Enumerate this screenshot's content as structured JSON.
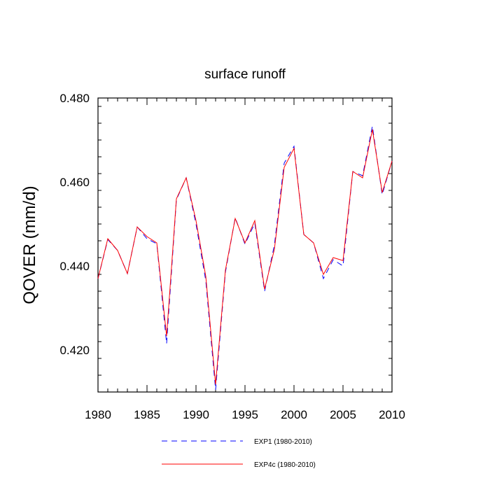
{
  "chart_data": {
    "type": "line",
    "title": "surface runoff",
    "xlabel": "",
    "ylabel": "QOVER  (mm/d)",
    "xlim": [
      1980,
      2010
    ],
    "ylim": [
      0.41,
      0.48
    ],
    "x_ticks": [
      1980,
      1985,
      1990,
      1995,
      2000,
      2005,
      2010
    ],
    "y_ticks": [
      0.42,
      0.44,
      0.46,
      0.48
    ],
    "y_tick_labels": [
      "0.420",
      "0.440",
      "0.460",
      "0.480"
    ],
    "x": [
      1980,
      1981,
      1982,
      1983,
      1984,
      1985,
      1986,
      1987,
      1988,
      1989,
      1990,
      1991,
      1992,
      1993,
      1994,
      1995,
      1996,
      1997,
      1998,
      1999,
      2000,
      2001,
      2002,
      2003,
      2004,
      2005,
      2006,
      2007,
      2008,
      2009,
      2010
    ],
    "series": [
      {
        "name": "EXP1 (1980-2010)",
        "color": "#0000ff",
        "dash": "dashed",
        "values": [
          0.437,
          0.4463,
          0.4437,
          0.4382,
          0.4493,
          0.4465,
          0.4453,
          0.4215,
          0.4558,
          0.461,
          0.45,
          0.4365,
          0.4105,
          0.4385,
          0.4515,
          0.4452,
          0.4502,
          0.434,
          0.445,
          0.4645,
          0.4685,
          0.4475,
          0.4455,
          0.437,
          0.4415,
          0.44,
          0.4625,
          0.4615,
          0.4733,
          0.457,
          0.465
        ]
      },
      {
        "name": "EXP4c (1980-2010)",
        "color": "#ff0000",
        "dash": "solid",
        "values": [
          0.437,
          0.4465,
          0.4437,
          0.4382,
          0.4493,
          0.447,
          0.4455,
          0.4233,
          0.456,
          0.461,
          0.4508,
          0.4375,
          0.4118,
          0.439,
          0.4513,
          0.4455,
          0.4508,
          0.4345,
          0.444,
          0.4635,
          0.468,
          0.4475,
          0.4455,
          0.438,
          0.442,
          0.4413,
          0.4625,
          0.461,
          0.4725,
          0.4575,
          0.465
        ]
      }
    ],
    "legend_placement": "bottom-center",
    "grid": false
  }
}
